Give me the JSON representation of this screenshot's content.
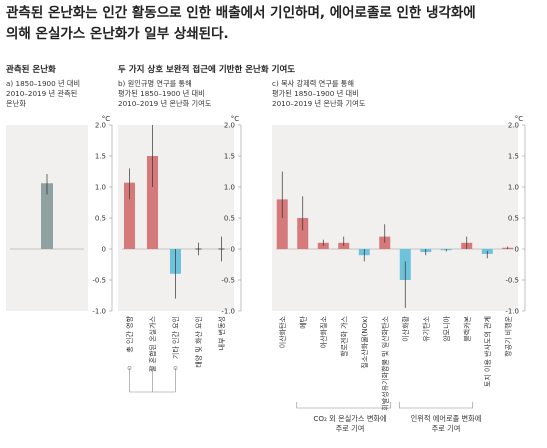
{
  "page": {
    "title_line1": "관측된 온난화는 인간 활동으로 인한 배출에서 기인하며, 에어로졸로 인한 냉각화에",
    "title_line2": "의해 온실가스 온난화가 일부 상쇄된다."
  },
  "panels": {
    "observed": {
      "header": "관측된 온난화",
      "sub1": "a) 1850–1900 년 대비",
      "sub2": "2010–2019 년 관측된",
      "sub3": "온난화"
    },
    "group_header": "두 가지 상호 보완적 접근에 기반한 온난화 기여도",
    "b": {
      "sub1": "b) 원인규명 연구를 통해",
      "sub2": "평가된 1850–1900 년 대비",
      "sub3": "2010–2019 년 온난화 기여도"
    },
    "c": {
      "sub1": "c) 복사 강제력 연구를 통해",
      "sub2": "평가된 1850–1900 년 대비",
      "sub3": "2010–2019 년 온난화 기여도"
    }
  },
  "axis": {
    "unit": "°C",
    "ylim": [
      -1.0,
      2.0
    ],
    "ticks": [
      "2.0",
      "1.5",
      "1.0",
      "0.5",
      "0",
      "-0.5",
      "-1.0"
    ]
  },
  "brackets": {
    "left_line1": "CO₂ 외 온실가스 변화에",
    "left_line2": "주로 기여",
    "right_line1": "인위적 에어로졸 변화에",
    "right_line2": "주로 기여"
  },
  "colors": {
    "warming": "#d6797a",
    "cooling": "#6ec3dc",
    "observed": "#8fa1a1",
    "panel_bg": "#f2f0ee",
    "error": "#333333"
  },
  "chart_data": [
    {
      "type": "bar",
      "categories": [
        ""
      ],
      "values": [
        1.06
      ],
      "errors": [
        [
          0.88,
          1.21
        ]
      ],
      "ylim": [
        -1.0,
        2.0
      ]
    },
    {
      "type": "bar",
      "categories": [
        "총 인간 영향",
        "잘 혼합된 온실가스",
        "기타 인간 요인",
        "태양 및 화산 요인",
        "내부 변동성"
      ],
      "values": [
        1.07,
        1.5,
        -0.4,
        0.0,
        0.0
      ],
      "errors": [
        [
          0.8,
          1.3
        ],
        [
          1.0,
          2.0
        ],
        [
          -0.8,
          0.0
        ],
        [
          -0.1,
          0.1
        ],
        [
          -0.2,
          0.2
        ]
      ],
      "ylim": [
        -1.0,
        2.0
      ]
    },
    {
      "type": "bar",
      "categories": [
        "이산화탄소",
        "메탄",
        "아산화질소",
        "할로겐화 가스",
        "질소산화물(NOx)",
        "휘발성유기화합물 및 일산화탄소",
        "이산화황",
        "유기탄소",
        "암모니아",
        "블랙카본",
        "토지 이용 반사도의 관계",
        "항공기 비행운"
      ],
      "values": [
        0.8,
        0.5,
        0.1,
        0.1,
        -0.1,
        0.2,
        -0.5,
        -0.05,
        -0.02,
        0.1,
        -0.08,
        0.02
      ],
      "errors": [
        [
          0.5,
          1.25
        ],
        [
          0.3,
          0.85
        ],
        [
          0.05,
          0.15
        ],
        [
          0.05,
          0.2
        ],
        [
          -0.2,
          0.0
        ],
        [
          0.1,
          0.4
        ],
        [
          -0.95,
          -0.2
        ],
        [
          -0.1,
          0.0
        ],
        [
          -0.04,
          0.0
        ],
        [
          0.0,
          0.2
        ],
        [
          -0.15,
          -0.03
        ],
        [
          0.0,
          0.04
        ]
      ],
      "ylim": [
        -1.0,
        2.0
      ]
    }
  ]
}
